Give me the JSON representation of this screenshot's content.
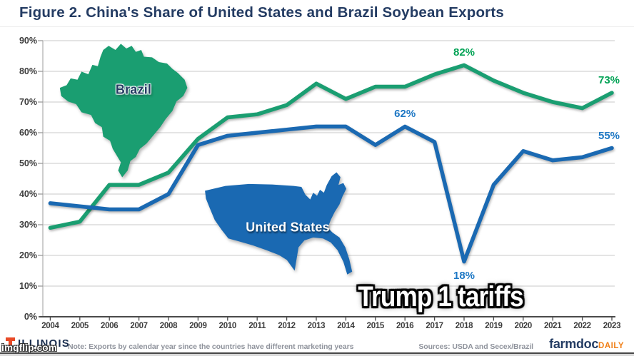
{
  "title": "Figure 2. China's Share of United States and Brazil Soybean Exports",
  "meme": {
    "caption": "Trump 1 tariffs",
    "watermark": "imgflip.com"
  },
  "maps": {
    "brazil_label": "Brazil",
    "us_label": "United States"
  },
  "chart_data": {
    "type": "line",
    "title": "Figure 2. China's Share of United States and Brazil Soybean Exports",
    "xlabel": "",
    "ylabel": "",
    "ylim": [
      0,
      90
    ],
    "y_tick_step": 10,
    "grid": true,
    "y_tick_labels": [
      "0%",
      "10%",
      "20%",
      "30%",
      "40%",
      "50%",
      "60%",
      "70%",
      "80%",
      "90%"
    ],
    "categories": [
      "2004",
      "2005",
      "2006",
      "2007",
      "2008",
      "2009",
      "2010",
      "2011",
      "2012",
      "2013",
      "2014",
      "2015",
      "2016",
      "2017",
      "2018",
      "2019",
      "2020",
      "2021",
      "2022",
      "2023"
    ],
    "series": [
      {
        "name": "Brazil",
        "color": "#1a9e71",
        "label_color": "#00a254",
        "values": [
          29,
          31,
          43,
          43,
          47,
          58,
          65,
          66,
          69,
          76,
          71,
          75,
          75,
          79,
          82,
          77,
          73,
          70,
          68,
          73
        ]
      },
      {
        "name": "United States",
        "color": "#1a69b2",
        "label_color": "#1d77c4",
        "values": [
          37,
          36,
          35,
          35,
          40,
          56,
          59,
          60,
          61,
          62,
          62,
          56,
          62,
          57,
          18,
          43,
          54,
          51,
          52,
          55
        ]
      }
    ],
    "annotations": [
      {
        "text": "82%",
        "series": 0,
        "year_index": 14,
        "placement": "above"
      },
      {
        "text": "73%",
        "series": 0,
        "year_index": 19,
        "placement": "above"
      },
      {
        "text": "62%",
        "series": 1,
        "year_index": 12,
        "placement": "above"
      },
      {
        "text": "55%",
        "series": 1,
        "year_index": 19,
        "placement": "above"
      },
      {
        "text": "18%",
        "series": 1,
        "year_index": 14,
        "placement": "below"
      }
    ]
  },
  "footer": {
    "logo_text": "ILLINOIS",
    "logo_color": "#e84a27",
    "note": "Note: Exports by calendar year since the countries have different marketing years",
    "sources": "Sources: USDA and Secex/Brazil",
    "brand": "farmdoc",
    "brand_suffix": "DAILY"
  }
}
